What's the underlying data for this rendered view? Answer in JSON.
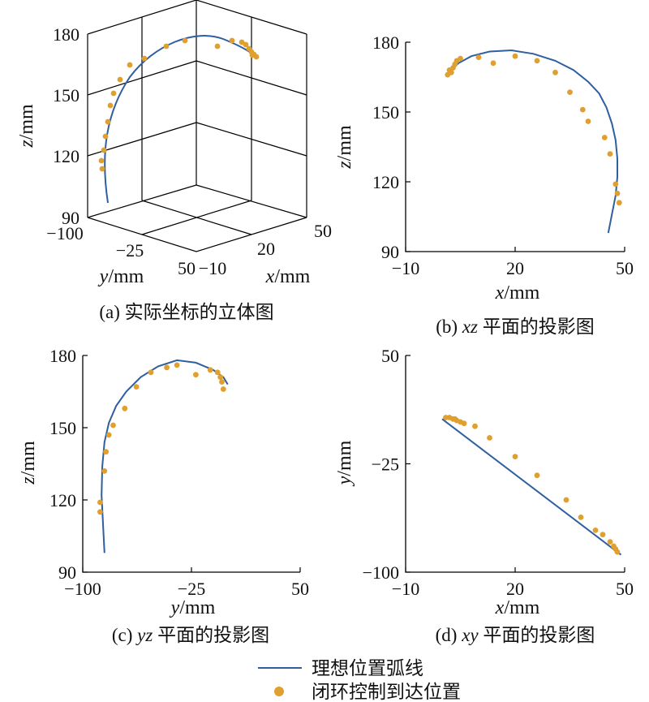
{
  "chart_data": [
    {
      "id": "a",
      "type": "scatter3d",
      "caption": "(a) 实际坐标的立体图",
      "xlabel": "x/mm",
      "ylabel": "y/mm",
      "zlabel": "z/mm",
      "xlim": [
        -10,
        50
      ],
      "ylim": [
        -100,
        50
      ],
      "zlim": [
        90,
        180
      ],
      "x_ticks": [
        "−10",
        "20",
        "50"
      ],
      "y_ticks": [
        "−100",
        "−25",
        "50"
      ],
      "z_ticks": [
        "90",
        "120",
        "150",
        "180"
      ]
    },
    {
      "id": "b",
      "type": "scatter",
      "caption_prefix": "(b)",
      "caption_var": "xz",
      "caption_rest": "平面的投影图",
      "xlabel_var": "x",
      "xlabel_unit": "/mm",
      "ylabel_var": "z",
      "ylabel_unit": "/mm",
      "xlim": [
        -10,
        50
      ],
      "ylim": [
        90,
        180
      ],
      "x_ticks": [
        "−10",
        "20",
        "50"
      ],
      "y_ticks": [
        "90",
        "120",
        "150",
        "180"
      ],
      "ideal_curve": {
        "x": [
          45.5,
          46.5,
          47.5,
          48,
          48,
          47.5,
          46.5,
          45,
          43,
          40,
          36,
          31,
          25,
          19,
          13,
          8,
          4.5,
          2.5
        ],
        "y": [
          98,
          106,
          114,
          122,
          130,
          138,
          145,
          152,
          158,
          163,
          168,
          172,
          175,
          176.5,
          176,
          174,
          171,
          168
        ]
      },
      "points": {
        "x": [
          1.5,
          2,
          2.5,
          3,
          3.5,
          4,
          5,
          10,
          14,
          20,
          26,
          31,
          35,
          38.5,
          40,
          44.5,
          46,
          47.5,
          48,
          48.5
        ],
        "y": [
          166,
          168,
          167,
          169,
          170.5,
          172,
          173,
          173.5,
          171,
          174,
          172,
          167,
          158.5,
          151,
          146,
          139,
          132,
          119,
          115,
          111
        ]
      }
    },
    {
      "id": "c",
      "type": "scatter",
      "caption_prefix": "(c)",
      "caption_var": "yz",
      "caption_rest": "平面的投影图",
      "xlabel_var": "y",
      "xlabel_unit": "/mm",
      "ylabel_var": "z",
      "ylabel_unit": "/mm",
      "xlim": [
        -100,
        50
      ],
      "ylim": [
        90,
        180
      ],
      "x_ticks": [
        "−100",
        "−25",
        "50"
      ],
      "y_ticks": [
        "90",
        "120",
        "150",
        "180"
      ],
      "ideal_curve": {
        "y": [
          -85,
          -86,
          -87,
          -86.5,
          -85,
          -82,
          -77,
          -70,
          -60,
          -48,
          -35,
          -22,
          -10,
          -3,
          0
        ],
        "z": [
          98,
          110,
          122,
          134,
          144,
          152,
          159,
          165,
          171,
          175.5,
          178,
          177,
          174,
          171,
          168
        ]
      },
      "points": {
        "y": [
          -88,
          -88,
          -85,
          -84,
          -82,
          -79,
          -71,
          -63,
          -53,
          -42,
          -35,
          -22,
          -12,
          -7,
          -5,
          -4,
          -3
        ],
        "z": [
          115,
          119,
          132,
          140,
          147,
          151,
          158,
          167,
          173,
          175,
          176,
          172,
          174,
          173,
          171,
          169,
          166
        ]
      }
    },
    {
      "id": "d",
      "type": "scatter",
      "caption_prefix": "(d)",
      "caption_var": "xy",
      "caption_rest": "平面的投影图",
      "xlabel_var": "x",
      "xlabel_unit": "/mm",
      "ylabel_var": "y",
      "ylabel_unit": "/mm",
      "xlim": [
        -10,
        50
      ],
      "ylim": [
        -100,
        50
      ],
      "x_ticks": [
        "−10",
        "20",
        "50"
      ],
      "y_ticks": [
        "50",
        "−25",
        "−100"
      ],
      "ideal_curve": {
        "x": [
          0,
          49
        ],
        "y": [
          6,
          -88
        ]
      },
      "points": {
        "x": [
          1,
          2,
          3,
          3.5,
          4,
          5,
          6,
          9,
          13,
          20,
          26,
          34,
          38,
          42,
          44,
          46,
          47,
          47.5,
          48
        ],
        "y": [
          7,
          7,
          6,
          6,
          5,
          4,
          3,
          1,
          -7,
          -20,
          -33,
          -50,
          -62,
          -71,
          -74,
          -79,
          -82,
          -84,
          -86
        ]
      }
    }
  ],
  "legend": {
    "line_label": "理想位置弧线",
    "point_label": "闭环控制到达位置",
    "line_color": "#2e5f9f",
    "point_color": "#e0a030"
  }
}
